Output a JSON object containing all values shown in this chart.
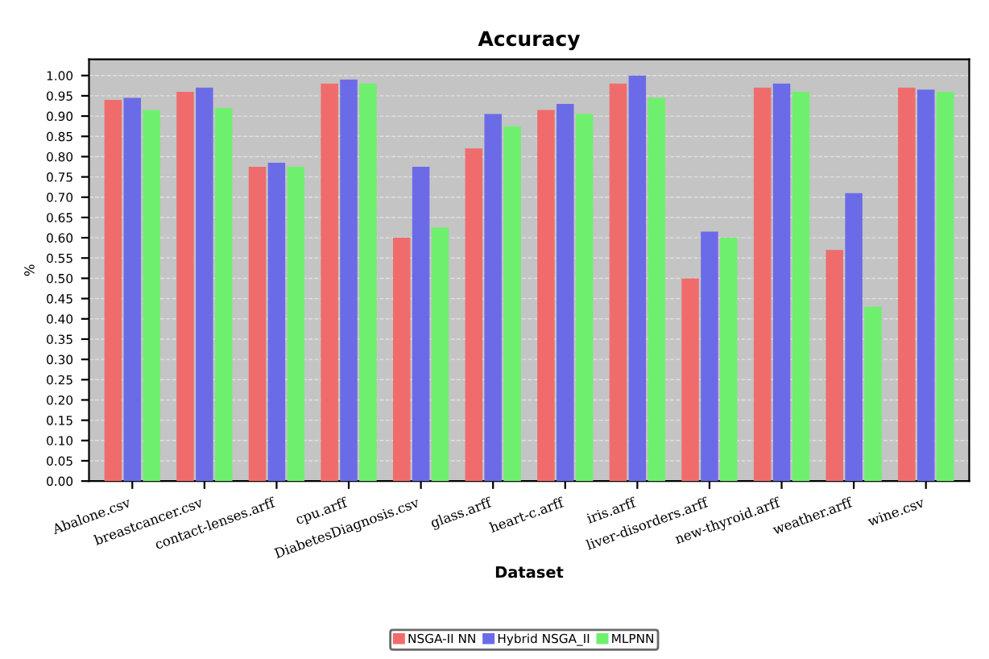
{
  "chart_data": {
    "type": "bar",
    "title": "Accuracy",
    "xlabel": "Dataset",
    "ylabel": "%",
    "categories": [
      "Abalone.csv",
      "breastcancer.csv",
      "contact-lenses.arff",
      "cpu.arff",
      "DiabetesDiagnosis.csv",
      "glass.arff",
      "heart-c.arff",
      "iris.arff",
      "liver-disorders.arff",
      "new-thyroid.arff",
      "weather.arff",
      "wine.csv"
    ],
    "series": [
      {
        "name": "NSGA-II NN",
        "color": "#f06c6c",
        "values": [
          0.94,
          0.96,
          0.775,
          0.98,
          0.6,
          0.82,
          0.915,
          0.98,
          0.5,
          0.97,
          0.57,
          0.97
        ]
      },
      {
        "name": "Hybrid NSGA_II",
        "color": "#6b6be8",
        "values": [
          0.945,
          0.97,
          0.785,
          0.99,
          0.775,
          0.905,
          0.93,
          1.0,
          0.615,
          0.98,
          0.71,
          0.965
        ]
      },
      {
        "name": "MLPNN",
        "color": "#6ef06e",
        "values": [
          0.915,
          0.92,
          0.775,
          0.98,
          0.625,
          0.875,
          0.905,
          0.945,
          0.6,
          0.96,
          0.43,
          0.96
        ]
      }
    ],
    "ylim": [
      0,
      1.04
    ],
    "yticks": [
      {
        "value": 0,
        "label": "0.00"
      },
      {
        "value": 0.05,
        "label": "0.05"
      },
      {
        "value": 0.1,
        "label": "0.10"
      },
      {
        "value": 0.15,
        "label": "0.15"
      },
      {
        "value": 0.2,
        "label": "0.20"
      },
      {
        "value": 0.25,
        "label": "0.25"
      },
      {
        "value": 0.3,
        "label": "0.30"
      },
      {
        "value": 0.35,
        "label": "0.35"
      },
      {
        "value": 0.4,
        "label": "0.40"
      },
      {
        "value": 0.45,
        "label": "0.45"
      },
      {
        "value": 0.5,
        "label": "0.50"
      },
      {
        "value": 0.55,
        "label": "0.55"
      },
      {
        "value": 0.6,
        "label": "0.60"
      },
      {
        "value": 0.65,
        "label": "0.65"
      },
      {
        "value": 0.7,
        "label": "0.70"
      },
      {
        "value": 0.75,
        "label": "0.75"
      },
      {
        "value": 0.8,
        "label": "0.80"
      },
      {
        "value": 0.85,
        "label": "0.85"
      },
      {
        "value": 0.9,
        "label": "0.90"
      },
      {
        "value": 0.95,
        "label": "0.95"
      },
      {
        "value": 1.0,
        "label": "1.00"
      }
    ],
    "grid": "y",
    "legend": "bottom"
  }
}
